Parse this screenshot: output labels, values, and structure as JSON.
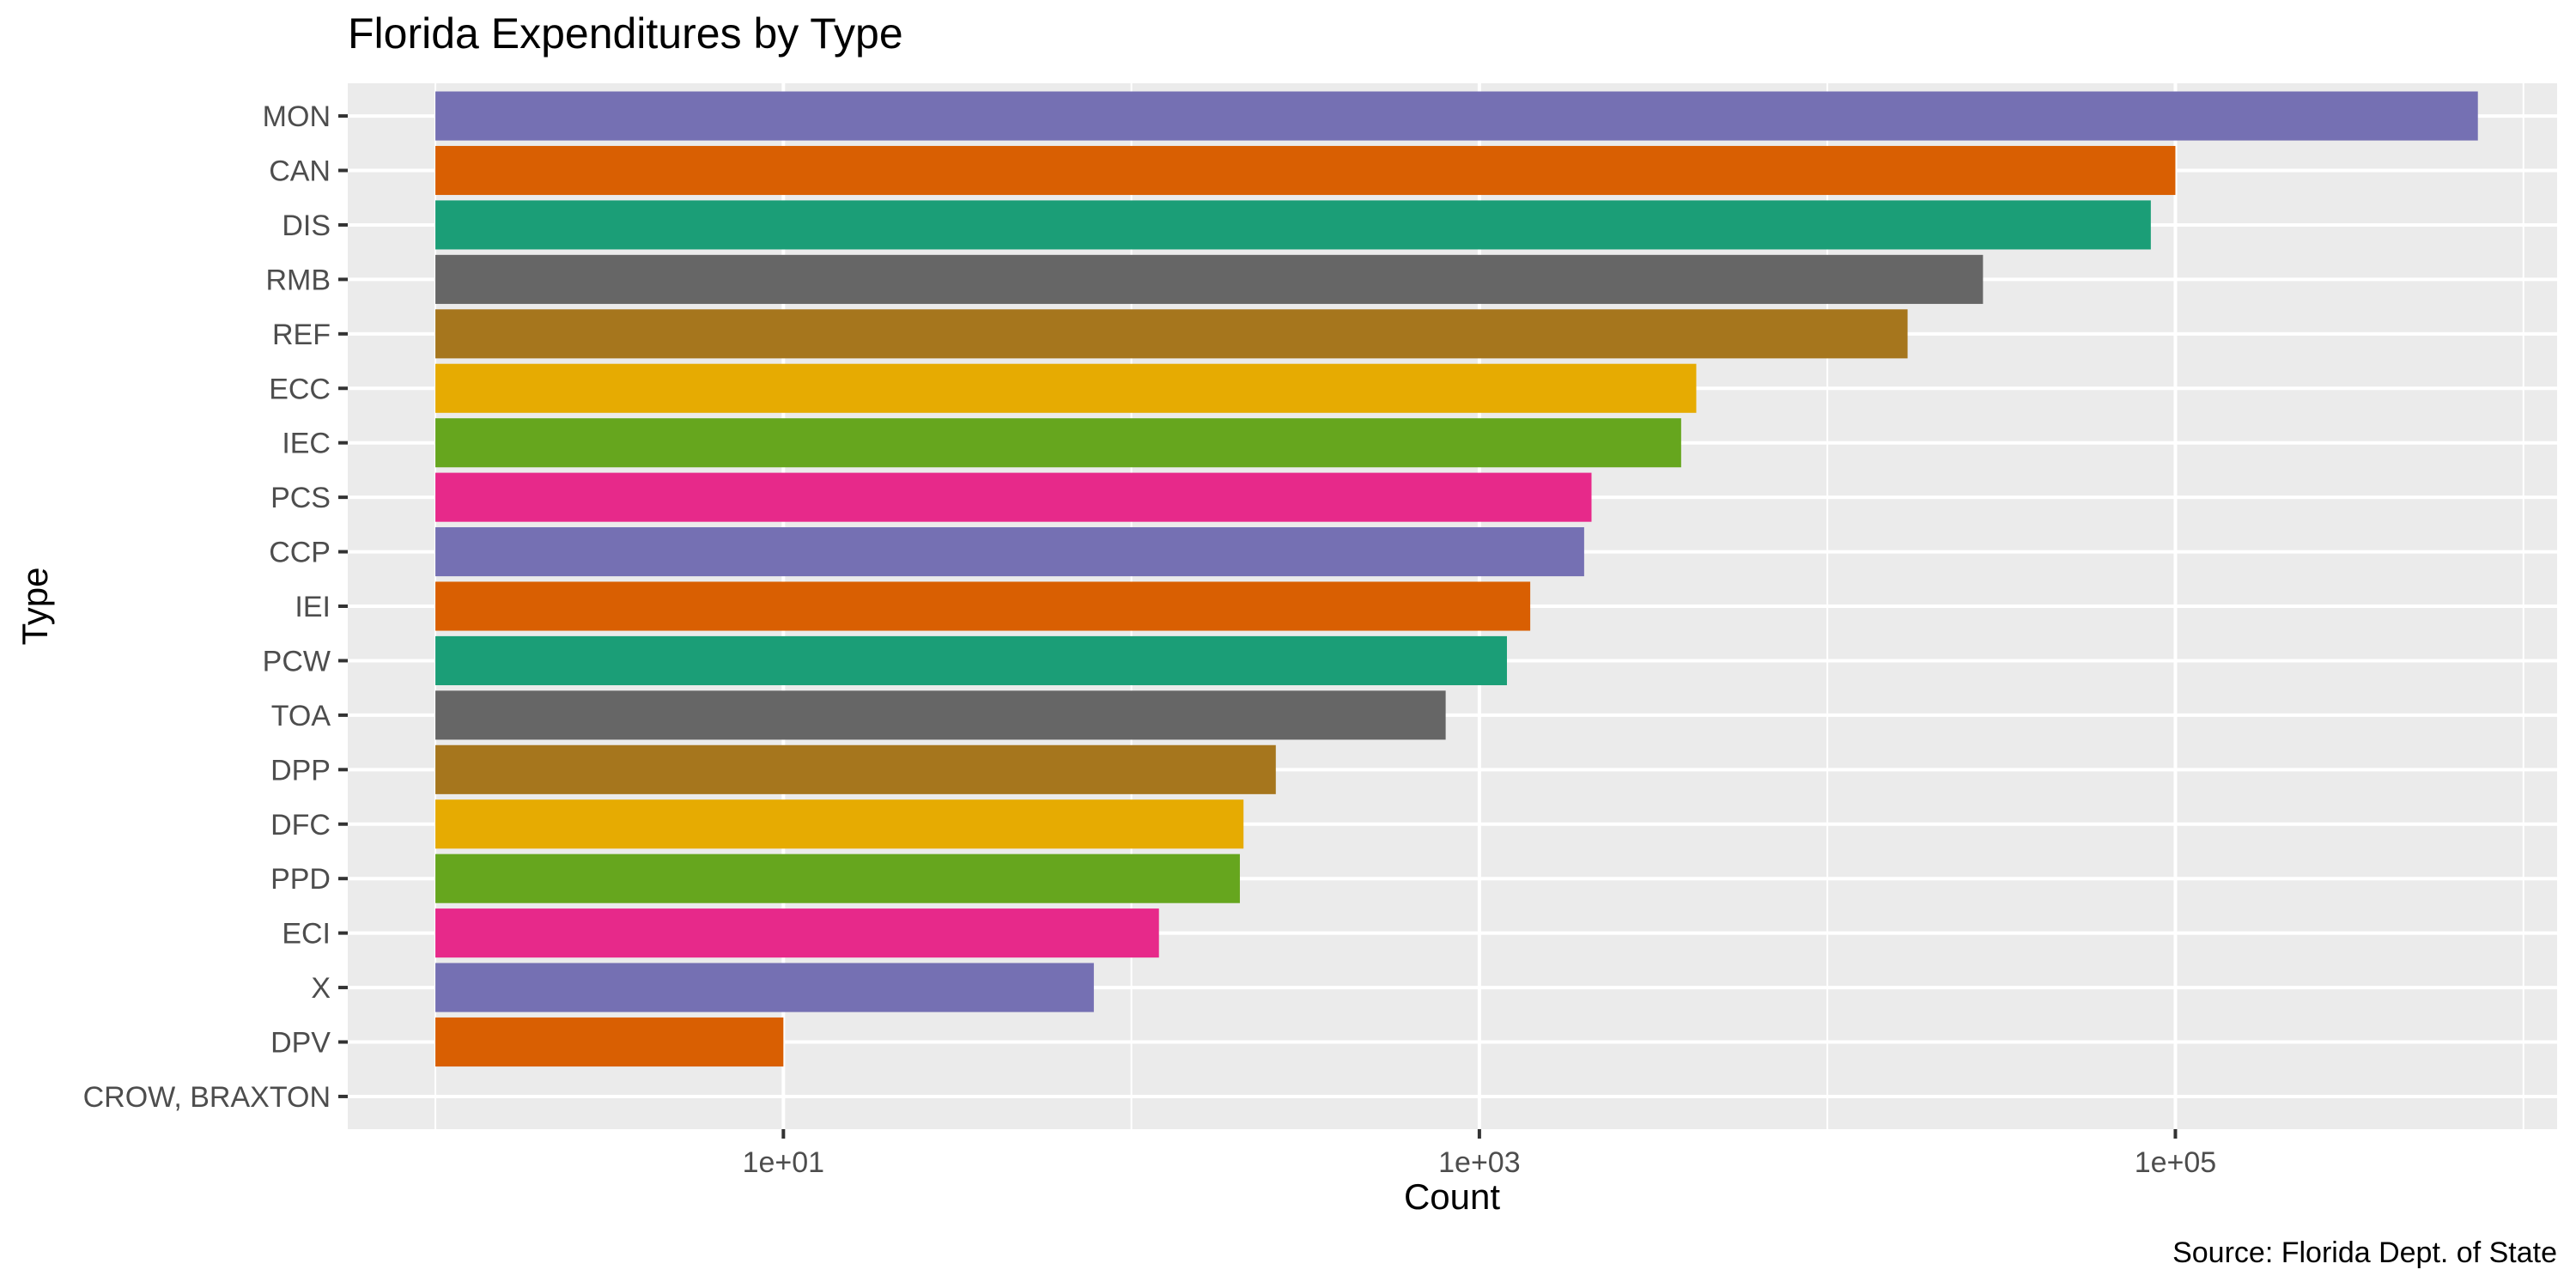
{
  "chart_data": {
    "type": "bar",
    "orientation": "horizontal",
    "title": "Florida Expenditures by Type",
    "xlabel": "Count",
    "ylabel": "Type",
    "caption": "Source: Florida Dept. of State",
    "x_scale": "log10",
    "xlim": [
      0.56,
      1250000
    ],
    "x_ticks": [
      10,
      1000,
      100000
    ],
    "x_tick_labels": [
      "1e+01",
      "1e+03",
      "1e+05"
    ],
    "grid": true,
    "legend": "none",
    "categories": [
      "MON",
      "CAN",
      "DIS",
      "RMB",
      "REF",
      "ECC",
      "IEC",
      "PCS",
      "CCP",
      "IEI",
      "PCW",
      "TOA",
      "DPP",
      "DFC",
      "PPD",
      "ECI",
      "X",
      "DPV",
      "CROW, BRAXTON"
    ],
    "values": [
      740000,
      100000,
      85000,
      28000,
      17000,
      4200,
      3800,
      2100,
      2000,
      1400,
      1200,
      800,
      260,
      210,
      205,
      120,
      78,
      10,
      1
    ],
    "colors": [
      "#7570b3",
      "#d95f02",
      "#1b9e77",
      "#666666",
      "#a6761d",
      "#e6ab02",
      "#66a61e",
      "#e7298a",
      "#7570b3",
      "#d95f02",
      "#1b9e77",
      "#666666",
      "#a6761d",
      "#e6ab02",
      "#66a61e",
      "#e7298a",
      "#7570b3",
      "#d95f02",
      "#1b9e77"
    ]
  }
}
